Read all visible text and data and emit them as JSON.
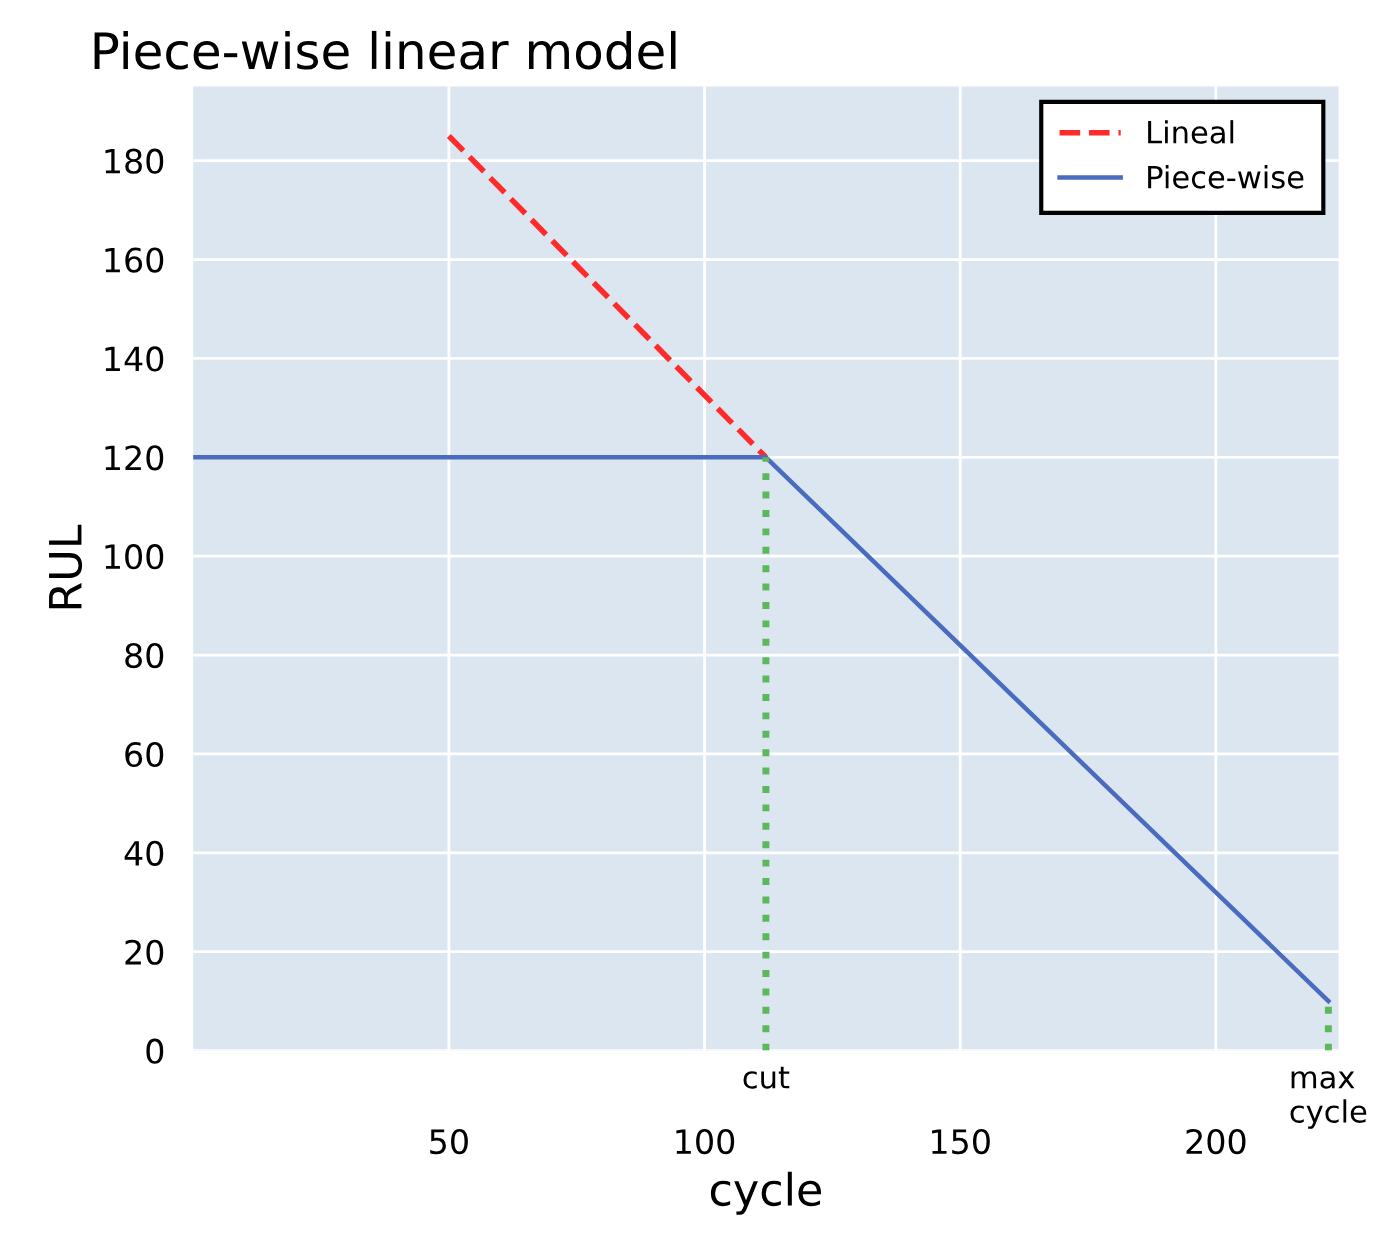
{
  "chart_data": {
    "type": "line",
    "title": "Piece-wise linear model",
    "xlabel": "cycle",
    "ylabel": "RUL",
    "series": [
      {
        "name": "Lineal",
        "color": "#ff2a2a",
        "line_style": "dashed",
        "x": [
          50,
          112
        ],
        "values": [
          185,
          120
        ]
      },
      {
        "name": "Piece-wise",
        "color": "#4a6cbf",
        "line_style": "solid",
        "x": [
          0,
          112,
          222
        ],
        "values": [
          120,
          120,
          10
        ]
      }
    ],
    "ref_lines": [
      {
        "axis": "x",
        "value": 112,
        "label": "cut",
        "color": "#5cb85c",
        "line_style": "dotted"
      },
      {
        "axis": "x",
        "value": 222,
        "label": "max\ncycle",
        "color": "#5cb85c",
        "line_style": "dotted"
      }
    ],
    "xlim": [
      0,
      224
    ],
    "ylim": [
      0,
      195
    ],
    "xticks": [
      50,
      100,
      150,
      200
    ],
    "yticks": [
      0,
      20,
      40,
      60,
      80,
      100,
      120,
      140,
      160,
      180
    ],
    "grid": true,
    "legend": "top right"
  }
}
